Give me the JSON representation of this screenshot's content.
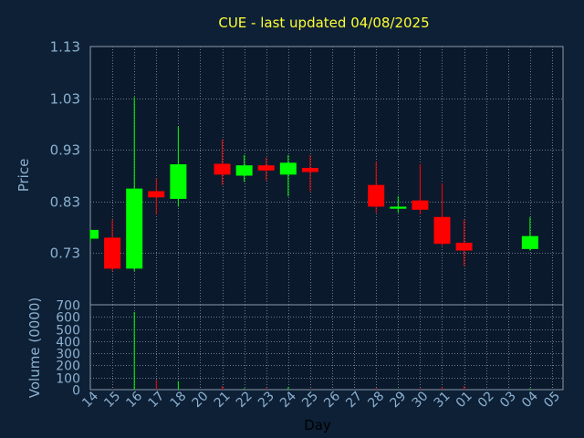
{
  "chart_data": {
    "type": "candlestick",
    "title": "CUE - last updated 04/08/2025",
    "xlabel": "Day",
    "ylabel_price": "Price",
    "ylabel_volume": "Volume (0000)",
    "categories": [
      "14",
      "15",
      "16",
      "17",
      "18",
      "20",
      "21",
      "22",
      "23",
      "24",
      "25",
      "26",
      "27",
      "28",
      "29",
      "30",
      "31",
      "01",
      "02",
      "03",
      "04",
      "05"
    ],
    "price_ticks": [
      "1.13",
      "1.03",
      "0.93",
      "0.83",
      "0.73"
    ],
    "price_range": [
      0.63,
      1.13
    ],
    "volume_ticks": [
      "700",
      "600",
      "500",
      "400",
      "300",
      "200",
      "100",
      "0"
    ],
    "volume_range": [
      0,
      700
    ],
    "grid": true,
    "colors": {
      "up": "#00ff00",
      "down": "#ff0000",
      "background": "#0d2036",
      "panel": "#0a1a2c",
      "grid": "#6c7a8c",
      "title": "#ffff33",
      "text": "#8cb0d0"
    },
    "candles": [
      {
        "day": "14",
        "open": 0.758,
        "high": 0.775,
        "low": 0.752,
        "close": 0.775,
        "volume": 0
      },
      {
        "day": "15",
        "open": 0.76,
        "high": 0.795,
        "low": 0.695,
        "close": 0.7,
        "volume": 5
      },
      {
        "day": "16",
        "open": 0.7,
        "high": 1.032,
        "low": 0.695,
        "close": 0.855,
        "volume": 640
      },
      {
        "day": "17",
        "open": 0.85,
        "high": 0.875,
        "low": 0.805,
        "close": 0.838,
        "volume": 80
      },
      {
        "day": "18",
        "open": 0.835,
        "high": 0.975,
        "low": 0.82,
        "close": 0.902,
        "volume": 70
      },
      {
        "day": "20",
        "open": null,
        "high": null,
        "low": null,
        "close": null,
        "volume": 0
      },
      {
        "day": "21",
        "open": 0.903,
        "high": 0.95,
        "low": 0.862,
        "close": 0.882,
        "volume": 30
      },
      {
        "day": "22",
        "open": 0.88,
        "high": 0.92,
        "low": 0.868,
        "close": 0.9,
        "volume": 10
      },
      {
        "day": "23",
        "open": 0.9,
        "high": 0.915,
        "low": 0.87,
        "close": 0.89,
        "volume": 15
      },
      {
        "day": "24",
        "open": 0.882,
        "high": 0.92,
        "low": 0.84,
        "close": 0.905,
        "volume": 20
      },
      {
        "day": "25",
        "open": 0.895,
        "high": 0.92,
        "low": 0.85,
        "close": 0.887,
        "volume": 5
      },
      {
        "day": "26",
        "open": null,
        "high": null,
        "low": null,
        "close": null,
        "volume": 0
      },
      {
        "day": "27",
        "open": null,
        "high": null,
        "low": null,
        "close": null,
        "volume": 0
      },
      {
        "day": "28",
        "open": 0.862,
        "high": 0.907,
        "low": 0.808,
        "close": 0.82,
        "volume": 15
      },
      {
        "day": "29",
        "open": 0.816,
        "high": 0.84,
        "low": 0.808,
        "close": 0.82,
        "volume": 5
      },
      {
        "day": "30",
        "open": 0.832,
        "high": 0.902,
        "low": 0.805,
        "close": 0.814,
        "volume": 10
      },
      {
        "day": "31",
        "open": 0.8,
        "high": 0.865,
        "low": 0.745,
        "close": 0.748,
        "volume": 20
      },
      {
        "day": "01",
        "open": 0.75,
        "high": 0.795,
        "low": 0.705,
        "close": 0.735,
        "volume": 30
      },
      {
        "day": "02",
        "open": null,
        "high": null,
        "low": null,
        "close": null,
        "volume": 0
      },
      {
        "day": "03",
        "open": null,
        "high": null,
        "low": null,
        "close": null,
        "volume": 0
      },
      {
        "day": "04",
        "open": 0.738,
        "high": 0.8,
        "low": 0.735,
        "close": 0.763,
        "volume": 10
      },
      {
        "day": "05",
        "open": null,
        "high": null,
        "low": null,
        "close": null,
        "volume": 0
      }
    ]
  }
}
